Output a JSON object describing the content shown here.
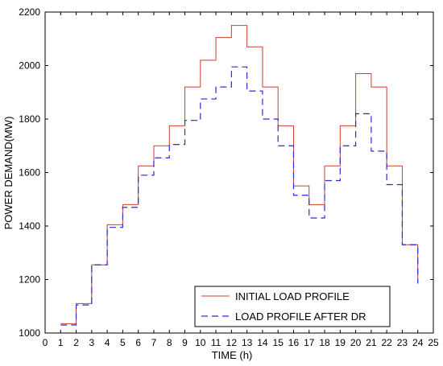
{
  "chart_data": {
    "type": "line",
    "step": true,
    "xlabel": "TIME (h)",
    "ylabel": "POWER DEMAND(MW)",
    "xlim": [
      0,
      25
    ],
    "ylim": [
      1000,
      2200
    ],
    "xticks": [
      0,
      1,
      2,
      3,
      4,
      5,
      6,
      7,
      8,
      9,
      10,
      11,
      12,
      13,
      14,
      15,
      16,
      17,
      18,
      19,
      20,
      21,
      22,
      23,
      24,
      25
    ],
    "yticks": [
      1000,
      1200,
      1400,
      1600,
      1800,
      2000,
      2200
    ],
    "grid": false,
    "legend_position": "bottom-right",
    "x": [
      1,
      2,
      3,
      4,
      5,
      6,
      7,
      8,
      9,
      10,
      11,
      12,
      13,
      14,
      15,
      16,
      17,
      18,
      19,
      20,
      21,
      22,
      23,
      24
    ],
    "series": [
      {
        "name": "INITIAL LOAD PROFILE",
        "color": "#c8402c",
        "dash": "solid",
        "values": [
          1035,
          1110,
          1255,
          1405,
          1480,
          1625,
          1700,
          1775,
          1920,
          2020,
          2105,
          2150,
          2070,
          1920,
          1775,
          1550,
          1480,
          1625,
          1775,
          1970,
          1920,
          1625,
          1330,
          1190
        ]
      },
      {
        "name": "LOAD PROFILE AFTER DR",
        "color": "#2a2ad8",
        "dash": "dashed",
        "values": [
          1030,
          1105,
          1255,
          1395,
          1470,
          1590,
          1655,
          1705,
          1795,
          1875,
          1920,
          1995,
          1905,
          1800,
          1700,
          1515,
          1430,
          1570,
          1700,
          1820,
          1680,
          1555,
          1330,
          1185
        ]
      }
    ]
  }
}
